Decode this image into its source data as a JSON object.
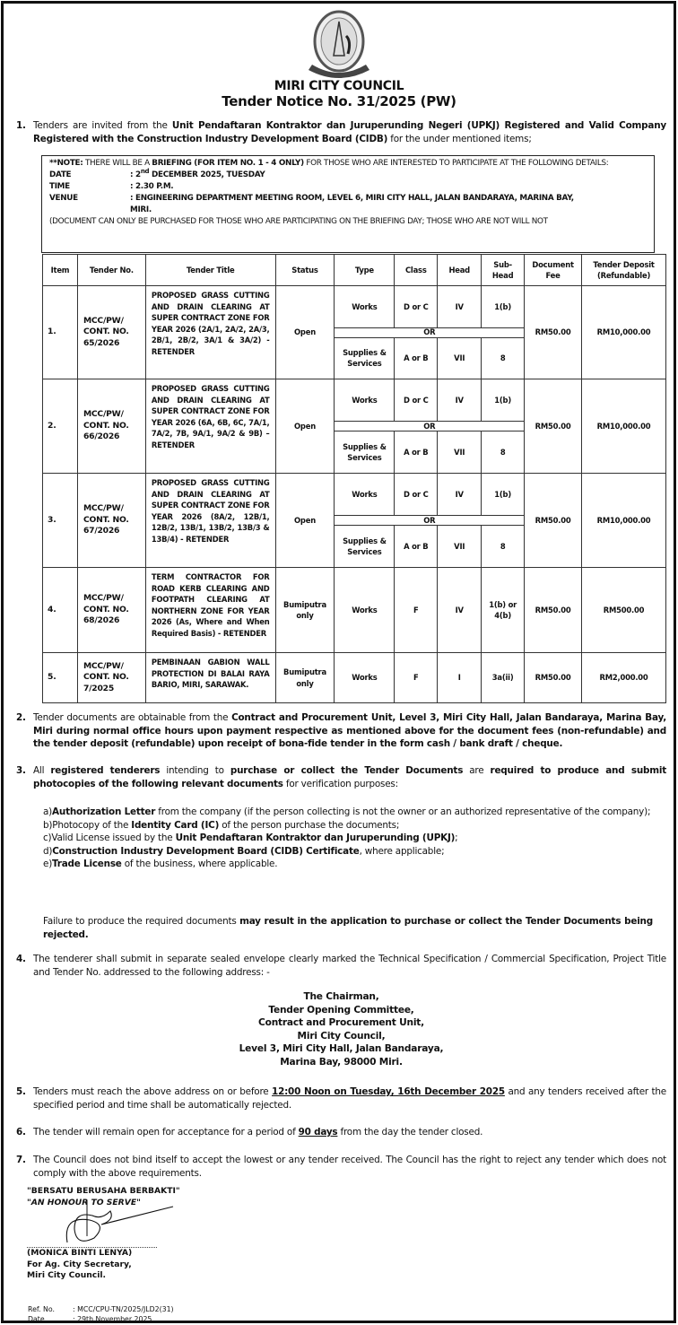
{
  "header": {
    "logo_text": "MAJLIS BANDARAYA MIRI",
    "org": "MIRI CITY COUNCIL",
    "notice_no": "Tender Notice No. 31/2025 (PW)"
  },
  "p1": {
    "num": "1.",
    "segs": [
      {
        "t": "Tenders are invited from the "
      },
      {
        "t": "Unit Pendaftaran Kontraktor dan Juruperunding Negeri (UPKJ) Registered and Valid Company Registered with the Construction Industry Development Board (CIDB)",
        "b": true
      },
      {
        "t": " for the under mentioned items;"
      }
    ]
  },
  "note": {
    "line1_a": "**NOTE:",
    "line1_b": " THERE WILL BE A ",
    "line1_c": "BRIEFING (FOR ITEM NO. 1 - 4 ONLY)",
    "line1_d": " FOR THOSE WHO ARE INTERESTED TO PARTICIPATE AT THE FOLLOWING DETAILS:",
    "date_label": "DATE",
    "date_day": ": 2",
    "date_sup": "nd",
    "date_rest": " DECEMBER 2025, TUESDAY",
    "time_label": "TIME",
    "time_value": ": 2.30 P.M.",
    "venue_label": "VENUE",
    "venue_value": ": ENGINEERING DEPARTMENT MEETING ROOM, LEVEL 6, MIRI CITY HALL, JALAN BANDARAYA, MARINA BAY, MIRI.",
    "footer": "(DOCUMENT CAN ONLY BE PURCHASED FOR THOSE WHO ARE PARTICIPATING ON THE BRIEFING DAY; THOSE WHO ARE NOT WILL NOT"
  },
  "table": {
    "headers": [
      "Item",
      "Tender No.",
      "Tender Title",
      "Status",
      "Type",
      "Class",
      "Head",
      "Sub-Head",
      "Document Fee",
      "Tender Deposit (Refundable)"
    ],
    "or_label": "OR",
    "rows": [
      {
        "item": "1.",
        "tender_no": "MCC/PW/ CONT. NO. 65/2026",
        "title": "PROPOSED GRASS CUTTING AND DRAIN CLEARING AT SUPER CONTRACT ZONE FOR YEAR 2026 (2A/1, 2A/2, 2A/3, 2B/1, 2B/2, 3A/1 & 3A/2) - RETENDER",
        "status": "Open",
        "options": [
          {
            "type": "Works",
            "class": "D or C",
            "head": "IV",
            "subhead": "1(b)"
          },
          {
            "type": "Supplies & Services",
            "class": "A or B",
            "head": "VII",
            "subhead": "8"
          }
        ],
        "fee": "RM50.00",
        "deposit": "RM10,000.00"
      },
      {
        "item": "2.",
        "tender_no": "MCC/PW/ CONT. NO. 66/2026",
        "title": "PROPOSED GRASS CUTTING AND DRAIN CLEARING AT SUPER CONTRACT ZONE FOR YEAR 2026 (6A, 6B, 6C, 7A/1, 7A/2, 7B, 9A/1, 9A/2 & 9B) – RETENDER",
        "status": "Open",
        "options": [
          {
            "type": "Works",
            "class": "D or C",
            "head": "IV",
            "subhead": "1(b)"
          },
          {
            "type": "Supplies & Services",
            "class": "A or B",
            "head": "VII",
            "subhead": "8"
          }
        ],
        "fee": "RM50.00",
        "deposit": "RM10,000.00"
      },
      {
        "item": "3.",
        "tender_no": "MCC/PW/ CONT. NO. 67/2026",
        "title": "PROPOSED GRASS CUTTING AND DRAIN CLEARING AT SUPER CONTRACT ZONE FOR YEAR 2026 (8A/2, 12B/1, 12B/2, 13B/1, 13B/2, 13B/3 & 13B/4) - RETENDER",
        "status": "Open",
        "options": [
          {
            "type": "Works",
            "class": "D or C",
            "head": "IV",
            "subhead": "1(b)"
          },
          {
            "type": "Supplies & Services",
            "class": "A or B",
            "head": "VII",
            "subhead": "8"
          }
        ],
        "fee": "RM50.00",
        "deposit": "RM10,000.00"
      },
      {
        "item": "4.",
        "tender_no": "MCC/PW/ CONT. NO. 68/2026",
        "title": "TERM CONTRACTOR FOR ROAD KERB CLEARING AND FOOTPATH CLEARING AT NORTHERN ZONE FOR YEAR 2026 (As, Where and When Required Basis) - RETENDER",
        "status": "Bumiputra only",
        "options": [
          {
            "type": "Works",
            "class": "F",
            "head": "IV",
            "subhead": "1(b) or 4(b)"
          }
        ],
        "fee": "RM50.00",
        "deposit": "RM500.00"
      },
      {
        "item": "5.",
        "tender_no": "MCC/PW/ CONT. NO. 7/2025",
        "title": "PEMBINAAN GABION WALL PROTECTION DI BALAI RAYA BARIO, MIRI, SARAWAK.",
        "status": "Bumiputra only",
        "options": [
          {
            "type": "Works",
            "class": "F",
            "head": "I",
            "subhead": "3a(ii)"
          }
        ],
        "fee": "RM50.00",
        "deposit": "RM2,000.00"
      }
    ]
  },
  "p2": {
    "num": "2.",
    "segs": [
      {
        "t": "Tender documents are obtainable from the "
      },
      {
        "t": "Contract and Procurement Unit, Level 3, Miri City Hall, Jalan Bandaraya, Marina Bay, Miri during normal office hours upon payment respective as mentioned above for the document fees (non-refundable) and the tender deposit (refundable) upon receipt of bona-fide tender in the form cash / bank draft / cheque.",
        "b": true
      }
    ]
  },
  "p3": {
    "num": "3.",
    "segs": [
      {
        "t": "All "
      },
      {
        "t": "registered tenderers",
        "b": true
      },
      {
        "t": " intending to "
      },
      {
        "t": "purchase or collect the Tender Documents",
        "b": true
      },
      {
        "t": " are "
      },
      {
        "t": "required to produce and submit photocopies of the following relevant documents",
        "b": true
      },
      {
        "t": " for verification purposes:"
      }
    ],
    "list": [
      {
        "l": "a)",
        "segs": [
          {
            "t": "Authorization Letter",
            "b": true
          },
          {
            "t": " from the company (if the person collecting is not the owner or an authorized representative of the company);"
          }
        ]
      },
      {
        "l": "b)",
        "segs": [
          {
            "t": "Photocopy of the "
          },
          {
            "t": "Identity Card (IC)",
            "b": true
          },
          {
            "t": " of the person purchase the documents;"
          }
        ]
      },
      {
        "l": "c)",
        "segs": [
          {
            "t": "Valid License issued by the "
          },
          {
            "t": "Unit Pendaftaran Kontraktor dan Juruperunding (UPKJ)",
            "b": true
          },
          {
            "t": ";"
          }
        ]
      },
      {
        "l": "d)",
        "segs": [
          {
            "t": "Construction Industry Development Board (CIDB) Certificate",
            "b": true
          },
          {
            "t": ", where applicable;"
          }
        ]
      },
      {
        "l": "e)",
        "segs": [
          {
            "t": "Trade License",
            "b": true
          },
          {
            "t": " of the business, where applicable."
          }
        ]
      }
    ],
    "failure": [
      {
        "t": "Failure to produce the required documents "
      },
      {
        "t": "may result in the application to purchase or collect the Tender Documents being rejected.",
        "b": true
      }
    ]
  },
  "p4": {
    "num": "4.",
    "segs": [
      {
        "t": "The tenderer shall submit in separate sealed envelope clearly marked the Technical Specification / Commercial Specification, Project Title and Tender No. addressed to the following address: -"
      }
    ],
    "address": [
      "The Chairman,",
      "Tender Opening Committee,",
      "Contract and Procurement Unit,",
      "Miri City Council,",
      "Level 3, Miri City Hall, Jalan Bandaraya,",
      "Marina Bay, 98000 Miri."
    ]
  },
  "p5": {
    "num": "5.",
    "segs": [
      {
        "t": "Tenders must reach the above address on or before "
      },
      {
        "t": "12:00 Noon on Tuesday, 16th December 2025",
        "u": true
      },
      {
        "t": " and any tenders received after the specified period and time shall be automatically rejected."
      }
    ]
  },
  "p6": {
    "num": "6.",
    "segs": [
      {
        "t": "The tender will remain open for acceptance for a period of "
      },
      {
        "t": "90 days",
        "u": true
      },
      {
        "t": " from the day the tender closed."
      }
    ]
  },
  "p7": {
    "num": "7.",
    "segs": [
      {
        "t": "The Council does not bind itself to accept the lowest or any tender received. The Council has the right to reject any tender which does not comply with the above requirements."
      }
    ]
  },
  "signature": {
    "motto1": "\"BERSATU BERUSAHA BERBAKTI\"",
    "motto2": "\"AN HONOUR TO SERVE\"",
    "name": "(MONICA BINTI LENYA)",
    "title": "For Ag. City Secretary,",
    "org": "Miri City Council."
  },
  "ref": {
    "ref_label": "Ref. No.",
    "ref_value": ": MCC/CPU-TN/2025/JLD2(31)",
    "date_label": "Date",
    "date_value": ": 29th November 2025"
  }
}
